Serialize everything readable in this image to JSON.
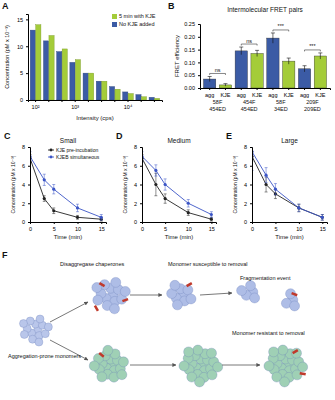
{
  "chart_data": [
    {
      "type": "bar",
      "panel": "A",
      "categories": [
        "10²",
        null,
        null,
        "10³",
        null,
        null,
        null,
        "10⁴",
        null,
        null
      ],
      "series": [
        {
          "name": "No KJE added",
          "color": "#3b5ba5",
          "values": [
            13,
            11,
            9,
            7,
            5,
            3.5,
            2.5,
            1.5,
            1,
            0.5
          ]
        },
        {
          "name": "5 min with KJE",
          "color": "#a4cc39",
          "values": [
            14,
            12,
            9.5,
            7.5,
            5,
            3.5,
            2,
            1.2,
            0.6,
            0.3
          ]
        }
      ],
      "x_label": "Intensity (cps)",
      "y_label": "Concentration (pM x 10⁻³)",
      "ylim": [
        0,
        16
      ],
      "yticks": [
        0,
        5,
        10,
        15
      ],
      "legend": "upper right"
    },
    {
      "type": "bar",
      "panel": "B",
      "title": "Intermolecular FRET pairs",
      "categories": [
        "agg",
        "KJE",
        "agg",
        "KJE",
        "agg",
        "KJE",
        "agg",
        "KJE"
      ],
      "values": [
        0.035,
        0.012,
        0.145,
        0.135,
        0.195,
        0.105,
        0.075,
        0.125
      ],
      "errors": [
        0.01,
        0.005,
        0.015,
        0.012,
        0.02,
        0.012,
        0.012,
        0.012
      ],
      "colors": [
        "#3b5ba5",
        "#a4cc39",
        "#3b5ba5",
        "#a4cc39",
        "#3b5ba5",
        "#a4cc39",
        "#3b5ba5",
        "#a4cc39"
      ],
      "group_labels": [
        [
          "58F",
          "454ED"
        ],
        [
          "454F",
          "454ED"
        ],
        [
          "58F",
          "34ED"
        ],
        [
          "209F",
          "209ED"
        ]
      ],
      "significance": [
        "ns",
        "ns",
        "***",
        "***"
      ],
      "y_label": "FRET efficiency",
      "ylim": [
        0,
        0.25
      ],
      "yticks": [
        {
          "value": 0,
          "label": "0.00"
        },
        {
          "value": 0.05,
          "label": "0.05"
        },
        {
          "value": 0.1,
          "label": "0.10"
        },
        {
          "value": 0.15,
          "label": "0.15"
        },
        {
          "value": 0.2,
          "label": "0.20"
        },
        {
          "value": 0.25,
          "label": "0.25"
        }
      ]
    },
    {
      "type": "line",
      "panel": "C",
      "title": "Small",
      "x": [
        0,
        3,
        5,
        10,
        15
      ],
      "series": [
        {
          "name": "KJE pre-incubation",
          "color": "#222222",
          "values": [
            6.8,
            2.5,
            1.2,
            0.5,
            0.3
          ],
          "errors": [
            0.4,
            0.3,
            0.3,
            0.2,
            0.2
          ]
        },
        {
          "name": "KJEB simultaneous",
          "color": "#3b55c6",
          "values": [
            7,
            4.5,
            3.5,
            1.5,
            0.5
          ],
          "errors": [
            0.5,
            0.6,
            0.5,
            0.4,
            0.3
          ]
        }
      ],
      "x_label": "Time (min)",
      "y_label": "Concentration (pM x 10⁻³)",
      "xlim": [
        0,
        16
      ],
      "xticks": [
        0,
        5,
        10,
        15
      ],
      "ylim": [
        0,
        8
      ],
      "yticks": [
        0,
        2,
        4,
        6,
        8
      ],
      "legend": "upper right"
    },
    {
      "type": "line",
      "panel": "D",
      "title": "Medium",
      "x": [
        0,
        3,
        5,
        10,
        15
      ],
      "series": [
        {
          "color": "#222222",
          "values": [
            6.8,
            4,
            2.5,
            1,
            0.3
          ],
          "errors": [
            0.4,
            1.2,
            0.5,
            0.3,
            0.2
          ]
        },
        {
          "color": "#3b55c6",
          "values": [
            7,
            5.5,
            4,
            2,
            0.8
          ],
          "errors": [
            0.5,
            0.6,
            0.6,
            0.4,
            0.3
          ]
        }
      ],
      "x_label": "Time (min)",
      "y_label": "Concentration (pM x 10⁻³)",
      "xlim": [
        0,
        16
      ],
      "xticks": [
        0,
        5,
        10,
        15
      ],
      "ylim": [
        0,
        8
      ],
      "yticks": [
        0,
        2,
        4,
        6,
        8
      ]
    },
    {
      "type": "line",
      "panel": "E",
      "title": "Large",
      "x": [
        0,
        3,
        5,
        10,
        15
      ],
      "series": [
        {
          "color": "#222222",
          "values": [
            7,
            4,
            3,
            1.5,
            0.5
          ],
          "errors": [
            0.5,
            0.8,
            0.5,
            0.4,
            0.3
          ]
        },
        {
          "color": "#3b55c6",
          "values": [
            7.5,
            5,
            3.5,
            1.5,
            0.5
          ],
          "errors": [
            2,
            0.8,
            0.6,
            0.4,
            0.3
          ]
        }
      ],
      "x_label": "Time (min)",
      "y_label": "Concentration (pM x 10⁻³)",
      "xlim": [
        0,
        16
      ],
      "xticks": [
        0,
        5,
        10,
        15
      ],
      "ylim": [
        0,
        8
      ],
      "yticks": [
        0,
        2,
        4,
        6,
        8
      ]
    }
  ],
  "diagram": {
    "panel": "F",
    "labels": [
      "Disaggregase chaperones",
      "Monomer susceptible to removal",
      "Fragmentation event",
      "Monomer resistant to removal",
      "Aggregation-prone monomers"
    ]
  }
}
